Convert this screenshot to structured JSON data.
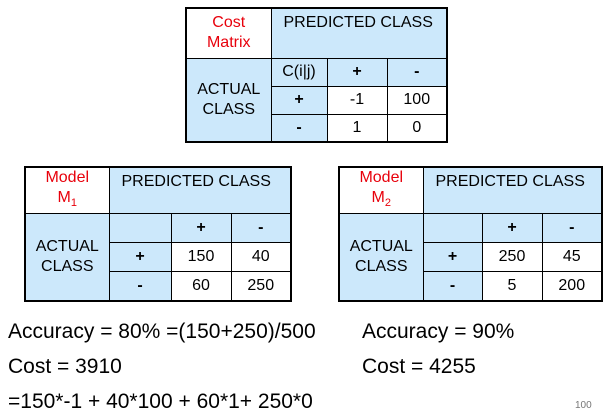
{
  "cost_matrix": {
    "corner_line1": "Cost",
    "corner_line2": "Matrix",
    "predicted_header": "PREDICTED CLASS",
    "actual_line1": "ACTUAL",
    "actual_line2": "CLASS",
    "col_label": "C(i|j)",
    "col_plus": "+",
    "col_minus": "-",
    "row_plus": "+",
    "row_minus": "-",
    "v_pp": "-1",
    "v_pm": "100",
    "v_mp": "1",
    "v_mm": "0"
  },
  "model1": {
    "name_prefix": "Model",
    "name_letter": "M",
    "name_sub": "1",
    "predicted_header": "PREDICTED CLASS",
    "actual_line1": "ACTUAL",
    "actual_line2": "CLASS",
    "col_plus": "+",
    "col_minus": "-",
    "row_plus": "+",
    "row_minus": "-",
    "v_pp": "150",
    "v_pm": "40",
    "v_mp": "60",
    "v_mm": "250"
  },
  "model2": {
    "name_prefix": "Model",
    "name_letter": "M",
    "name_sub": "2",
    "predicted_header": "PREDICTED CLASS",
    "actual_line1": "ACTUAL",
    "actual_line2": "CLASS",
    "col_plus": "+",
    "col_minus": "-",
    "row_plus": "+",
    "row_minus": "-",
    "v_pp": "250",
    "v_pm": "45",
    "v_mp": "5",
    "v_mm": "200"
  },
  "results": {
    "m1_accuracy": "Accuracy = 80% =(150+250)/500",
    "m1_cost": "Cost = 3910",
    "m1_formula": "=150*-1 + 40*100 + 60*1+ 250*0",
    "m2_accuracy": "Accuracy = 90%",
    "m2_cost": "Cost = 4255"
  },
  "page_number": "100"
}
